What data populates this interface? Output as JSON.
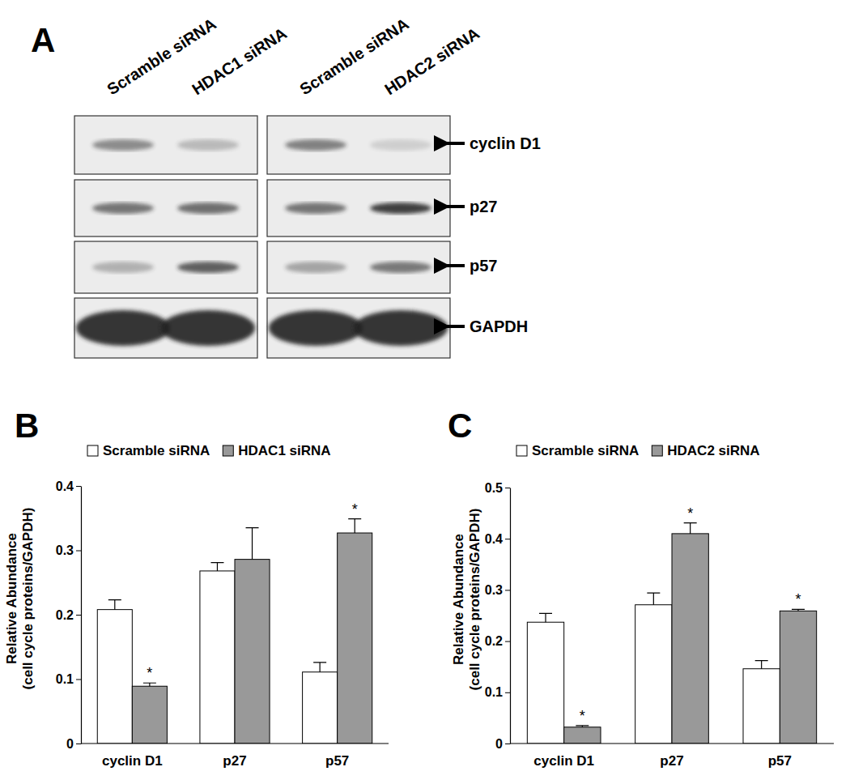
{
  "blot": {
    "panel_label": "A",
    "lanes": [
      "Scramble siRNA",
      "HDAC1 siRNA",
      "Scramble siRNA",
      "HDAC2 siRNA"
    ],
    "proteins": [
      "cyclin D1",
      "p27",
      "p57",
      "GAPDH"
    ]
  },
  "chart_data": [
    {
      "type": "bar",
      "panel_label": "B",
      "y_label": [
        "Relative Abundance",
        "(cell cycle proteins/GAPDH)"
      ],
      "categories": [
        "cyclin D1",
        "p27",
        "p57"
      ],
      "series": [
        {
          "name": "Scramble siRNA",
          "color": "#ffffff",
          "values": [
            0.208,
            0.268,
            0.111
          ],
          "errors": [
            0.015,
            0.013,
            0.015
          ]
        },
        {
          "name": "HDAC1 siRNA",
          "color": "#999999",
          "values": [
            0.089,
            0.286,
            0.327
          ],
          "errors": [
            0.005,
            0.049,
            0.022
          ],
          "significance": [
            "*",
            null,
            "*"
          ]
        }
      ],
      "ylim": [
        0,
        0.4
      ],
      "yticks": [
        0,
        0.1,
        0.2,
        0.3,
        0.4
      ],
      "legend": "top",
      "grid": false
    },
    {
      "type": "bar",
      "panel_label": "C",
      "y_label": [
        "Relative Abundance",
        "(cell cycle proteins/GAPDH)"
      ],
      "categories": [
        "cyclin D1",
        "p27",
        "p57"
      ],
      "series": [
        {
          "name": "Scramble siRNA",
          "color": "#ffffff",
          "values": [
            0.237,
            0.271,
            0.146
          ],
          "errors": [
            0.017,
            0.023,
            0.016
          ]
        },
        {
          "name": "HDAC2 siRNA",
          "color": "#999999",
          "values": [
            0.032,
            0.41,
            0.259
          ],
          "errors": [
            0.003,
            0.021,
            0.003
          ],
          "significance": [
            "*",
            "*",
            "*"
          ]
        }
      ],
      "ylim": [
        0,
        0.5
      ],
      "yticks": [
        0,
        0.1,
        0.2,
        0.3,
        0.4,
        0.5
      ],
      "legend": "top",
      "grid": false
    }
  ]
}
